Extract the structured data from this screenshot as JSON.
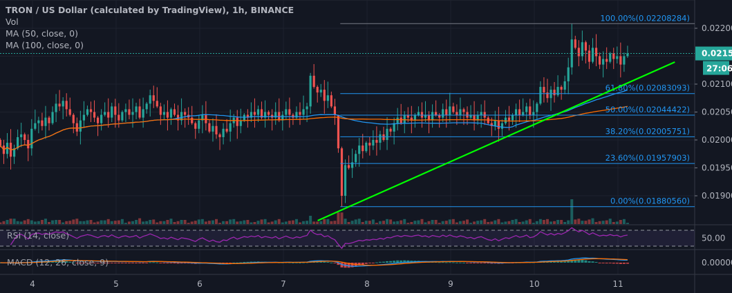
{
  "header": {
    "title": "TRON / US Dollar (calculated by TradingView), 1h, BINANCE",
    "studies": [
      "Vol",
      "MA (50, close, 0)",
      "MA (100, close, 0)"
    ]
  },
  "indicators": {
    "rsi": "RSI (14, close)",
    "macd": "MACD (12, 26, close, 9)"
  },
  "colors": {
    "background": "#131722",
    "up": "#26a69a",
    "down": "#ef5350",
    "ma50": "#2196f3",
    "ma100": "#ff6d00",
    "fib": "#2196f3",
    "trendline": "#00ff00",
    "rsi": "#9c27b0",
    "price_tag": "#26a69a"
  },
  "chart_data": {
    "type": "candlestick",
    "interval": "1h",
    "first_candle_day": 3.615,
    "x_ticks": [
      "4",
      "5",
      "6",
      "7",
      "8",
      "9",
      "10",
      "11"
    ],
    "y_ticks": [
      "0.02200000",
      "0.02100000",
      "0.02050000",
      "0.02000000",
      "0.01950000",
      "0.01900000"
    ],
    "ylim": [
      0.01855,
      0.0225
    ],
    "closes": [
      0.0199,
      0.01975,
      0.01995,
      0.0197,
      0.01985,
      0.02005,
      0.0201,
      0.02,
      0.01985,
      0.0202,
      0.0203,
      0.02035,
      0.02025,
      0.0204,
      0.0203,
      0.0205,
      0.02065,
      0.0206,
      0.0207,
      0.02055,
      0.02045,
      0.0203,
      0.02015,
      0.02035,
      0.02045,
      0.02055,
      0.0205,
      0.0204,
      0.0203,
      0.02045,
      0.0205,
      0.0204,
      0.0206,
      0.02045,
      0.02035,
      0.0205,
      0.02055,
      0.02045,
      0.0205,
      0.0206,
      0.0204,
      0.02055,
      0.02065,
      0.0208,
      0.0207,
      0.0206,
      0.02045,
      0.0205,
      0.0204,
      0.02055,
      0.02045,
      0.02035,
      0.0205,
      0.02045,
      0.0204,
      0.0203,
      0.0202,
      0.02035,
      0.02045,
      0.0203,
      0.02015,
      0.02025,
      0.0201,
      0.02005,
      0.0202,
      0.02015,
      0.0203,
      0.0204,
      0.02025,
      0.02035,
      0.02045,
      0.0204,
      0.0205,
      0.02045,
      0.02055,
      0.0204,
      0.0205,
      0.02045,
      0.0204,
      0.0205,
      0.02035,
      0.02045,
      0.02055,
      0.02045,
      0.0204,
      0.0205,
      0.02045,
      0.02055,
      0.0206,
      0.02115,
      0.02095,
      0.02085,
      0.0209,
      0.0207,
      0.0208,
      0.0206,
      0.02045,
      0.01985,
      0.019,
      0.01955,
      0.0195,
      0.0196,
      0.01975,
      0.0199,
      0.0198,
      0.01995,
      0.0199,
      0.02,
      0.01995,
      0.0201,
      0.02,
      0.0202,
      0.02015,
      0.0203,
      0.0204,
      0.0203,
      0.02045,
      0.0204,
      0.02035,
      0.02045,
      0.0205,
      0.0204,
      0.02045,
      0.02035,
      0.0205,
      0.02045,
      0.0204,
      0.02055,
      0.02045,
      0.0206,
      0.0205,
      0.02045,
      0.02055,
      0.0205,
      0.0204,
      0.02045,
      0.02035,
      0.02045,
      0.0205,
      0.0204,
      0.0203,
      0.02025,
      0.02035,
      0.0202,
      0.0203,
      0.0204,
      0.02035,
      0.02045,
      0.02055,
      0.02045,
      0.0205,
      0.0206,
      0.02045,
      0.0205,
      0.02065,
      0.02095,
      0.02085,
      0.02075,
      0.0209,
      0.0208,
      0.02095,
      0.0209,
      0.02105,
      0.0213,
      0.0218,
      0.02165,
      0.0215,
      0.02175,
      0.0216,
      0.0214,
      0.02165,
      0.0215,
      0.02135,
      0.02145,
      0.0214,
      0.02155,
      0.02145,
      0.0215,
      0.02135,
      0.0215,
      0.02155
    ],
    "current_price": "0.02154876",
    "countdown": "27:06",
    "fib_levels": [
      {
        "label": "100.00%(0.02208284)",
        "price": 0.02208284
      },
      {
        "label": "61.80%(0.02083093)",
        "price": 0.02083093
      },
      {
        "label": "50.00%(0.02044422)",
        "price": 0.02044422
      },
      {
        "label": "38.20%(0.02005751)",
        "price": 0.02005751
      },
      {
        "label": "23.60%(0.01957903)",
        "price": 0.01957903
      },
      {
        "label": "0.00%(0.01880560)",
        "price": 0.0188056
      }
    ],
    "fib_start_day": 7.68,
    "trendline": [
      {
        "day": 7.41,
        "price": 0.018556
      },
      {
        "day": 11.68,
        "price": 0.021395
      }
    ],
    "rsi_levels": [
      70,
      30
    ],
    "rsi_tick": "50.00",
    "macd_tick": "0.00000000"
  }
}
